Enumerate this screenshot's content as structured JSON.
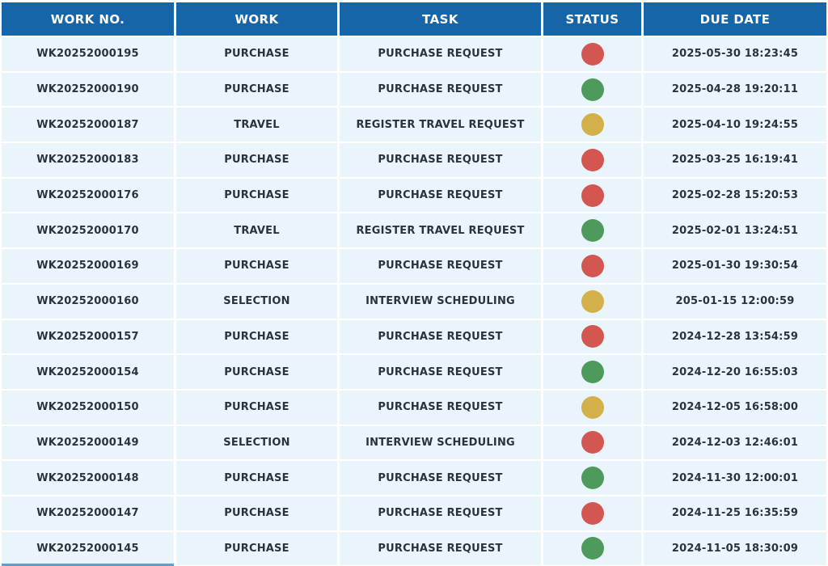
{
  "table": {
    "columns": [
      {
        "key": "work_no",
        "label": "WORK NO."
      },
      {
        "key": "work",
        "label": "WORK"
      },
      {
        "key": "task",
        "label": "TASK"
      },
      {
        "key": "status",
        "label": "STATUS"
      },
      {
        "key": "due_date",
        "label": "DUE DATE"
      }
    ],
    "rows": [
      {
        "work_no": "WK20252000195",
        "work": "PURCHASE",
        "task": "PURCHASE REQUEST",
        "status": "red",
        "due_date": "2025-05-30 18:23:45"
      },
      {
        "work_no": "WK20252000190",
        "work": "PURCHASE",
        "task": "PURCHASE REQUEST",
        "status": "green",
        "due_date": "2025-04-28 19:20:11"
      },
      {
        "work_no": "WK20252000187",
        "work": "TRAVEL",
        "task": "REGISTER TRAVEL REQUEST",
        "status": "yellow",
        "due_date": "2025-04-10 19:24:55"
      },
      {
        "work_no": "WK20252000183",
        "work": "PURCHASE",
        "task": "PURCHASE REQUEST",
        "status": "red",
        "due_date": "2025-03-25 16:19:41"
      },
      {
        "work_no": "WK20252000176",
        "work": "PURCHASE",
        "task": "PURCHASE REQUEST",
        "status": "red",
        "due_date": "2025-02-28 15:20:53"
      },
      {
        "work_no": "WK20252000170",
        "work": "TRAVEL",
        "task": "REGISTER TRAVEL REQUEST",
        "status": "green",
        "due_date": "2025-02-01 13:24:51"
      },
      {
        "work_no": "WK20252000169",
        "work": "PURCHASE",
        "task": "PURCHASE REQUEST",
        "status": "red",
        "due_date": "2025-01-30 19:30:54"
      },
      {
        "work_no": "WK20252000160",
        "work": "SELECTION",
        "task": "INTERVIEW SCHEDULING",
        "status": "yellow",
        "due_date": "205-01-15 12:00:59"
      },
      {
        "work_no": "WK20252000157",
        "work": "PURCHASE",
        "task": "PURCHASE REQUEST",
        "status": "red",
        "due_date": "2024-12-28 13:54:59"
      },
      {
        "work_no": "WK20252000154",
        "work": "PURCHASE",
        "task": "PURCHASE REQUEST",
        "status": "green",
        "due_date": "2024-12-20 16:55:03"
      },
      {
        "work_no": "WK20252000150",
        "work": "PURCHASE",
        "task": "PURCHASE REQUEST",
        "status": "yellow",
        "due_date": "2024-12-05 16:58:00"
      },
      {
        "work_no": "WK20252000149",
        "work": "SELECTION",
        "task": "INTERVIEW SCHEDULING",
        "status": "red",
        "due_date": "2024-12-03 12:46:01"
      },
      {
        "work_no": "WK20252000148",
        "work": "PURCHASE",
        "task": "PURCHASE REQUEST",
        "status": "green",
        "due_date": "2024-11-30 12:00:01"
      },
      {
        "work_no": "WK20252000147",
        "work": "PURCHASE",
        "task": "PURCHASE REQUEST",
        "status": "red",
        "due_date": "2024-11-25 16:35:59"
      },
      {
        "work_no": "WK20252000145",
        "work": "PURCHASE",
        "task": "PURCHASE REQUEST",
        "status": "green",
        "due_date": "2024-11-05 18:30:09"
      }
    ]
  },
  "colors": {
    "header_bg": "#1565a8",
    "row_bg": "#e9f4fb",
    "text": "#2a333c",
    "status_red": "#d35750",
    "status_green": "#4e9a5c",
    "status_yellow": "#d4b04a"
  }
}
